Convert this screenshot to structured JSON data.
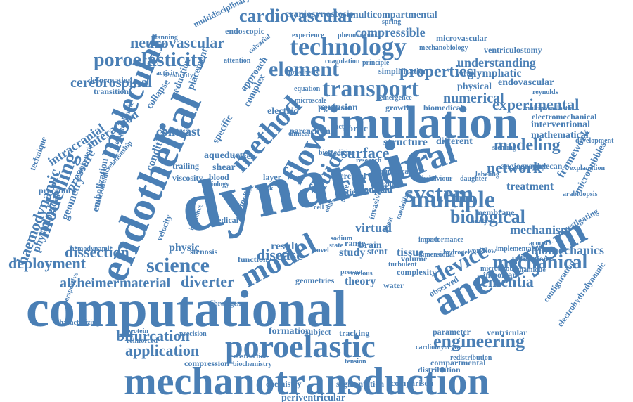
{
  "cloud": {
    "color": "#4a7fb5",
    "words": [
      "computational",
      "mechanotransduction",
      "dynamic",
      "simulation",
      "endothelial",
      "molecular",
      "aneurysm",
      "model",
      "cerebral",
      "poroelastic",
      "technology",
      "transport",
      "element",
      "method",
      "flow",
      "fluid",
      "system",
      "multiple",
      "device",
      "science",
      "network",
      "modeling",
      "modelling",
      "engineering",
      "mechanical",
      "poroelasticity",
      "biological",
      "properties",
      "cardiovascular",
      "neurovascular",
      "haemodynamic",
      "physiological",
      "dementia",
      "alzheimer",
      "material",
      "diverter",
      "bifurcation",
      "application",
      "deployment",
      "dissection",
      "cerebrospinal",
      "intracranial",
      "interaction",
      "pressure",
      "embolization",
      "geometry",
      "contrast",
      "condition",
      "collapse",
      "numerical",
      "experimental",
      "understanding",
      "glymphatic",
      "craniosynostosis",
      "multicompartmental",
      "compressible",
      "multidisciplinary",
      "mechanism",
      "biomechanics",
      "framework",
      "microbubbles",
      "treatment",
      "membrane",
      "surface",
      "structure",
      "different",
      "aortic",
      "study",
      "result",
      "disease",
      "virtual",
      "brain",
      "stent",
      "tissue",
      "theory",
      "physic",
      "stenosis",
      "velocity",
      "periventricular",
      "formation",
      "subject",
      "tracking",
      "segmentation",
      "comparison",
      "chemistry",
      "compression",
      "distribution",
      "compartmental",
      "parameter",
      "ventricular",
      "configuration",
      "electrohydrodynamic",
      "important",
      "validation",
      "investigating",
      "endovascular",
      "physical",
      "mathematical",
      "interventional",
      "electromechanical",
      "multiporoelastic",
      "microvascular",
      "ventriculostomy",
      "endoscopic",
      "experience",
      "phenomenon",
      "cerebral",
      "blood",
      "shear",
      "layer",
      "vessel",
      "specific",
      "approach",
      "complex",
      "electric",
      "perfusion",
      "growth",
      "biomedical",
      "stenting",
      "angiography",
      "syndecan",
      "placement",
      "reduction",
      "transition",
      "deformation",
      "parenchymal",
      "medical",
      "function",
      "impact",
      "activity",
      "microfluidics",
      "implantation",
      "procedure",
      "technique",
      "biomedicine",
      "factor",
      "coupled",
      "field",
      "effect",
      "patient",
      "cell",
      "edge",
      "scale",
      "ghost",
      "invasive",
      "sodium",
      "range",
      "novel",
      "state",
      "shock",
      "water",
      "observed",
      "influence",
      "precision",
      "fibrinogen",
      "protein",
      "reinforced",
      "characterizing",
      "biochemistry",
      "obstruction",
      "geometries",
      "present",
      "various",
      "clinical",
      "aqueduct",
      "trailing",
      "viscosity",
      "biology",
      "pipeline",
      "attention",
      "calvarial",
      "coagulation",
      "prosthesis",
      "simplification",
      "emergence",
      "significant",
      "microscale",
      "equation",
      "sensitivity",
      "planning",
      "relationship",
      "computationelle",
      "hemodynamic",
      "perspective",
      "performance",
      "dimensional",
      "analysis",
      "labeling",
      "behaviour",
      "daughter",
      "acoustic",
      "dynamique",
      "microbubble",
      "arabidopsis",
      "explanation",
      "reynolds",
      "development",
      "redistribution",
      "implementation",
      "cardiomyocyte",
      "workflow",
      "complexity",
      "turbulent",
      "modelling",
      "volume",
      "principle",
      "research",
      "numerical",
      "imaging",
      "hydrogel",
      "tension",
      "spring",
      "mechanobiology",
      "vortex"
    ]
  }
}
